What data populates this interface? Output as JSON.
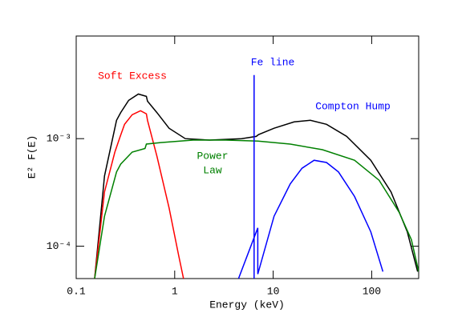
{
  "chart_data": {
    "type": "line",
    "xlabel": "Energy (keV)",
    "ylabel": "E² F(E)",
    "xscale": "log",
    "yscale": "log",
    "xlim": [
      0.1,
      300
    ],
    "ylim": [
      5e-05,
      0.009
    ],
    "xticks": [
      0.1,
      1,
      10,
      100
    ],
    "yticks": [
      {
        "value": 0.0001,
        "label": "10⁻⁴"
      },
      {
        "value": 0.001,
        "label": "10⁻³"
      }
    ],
    "series": [
      {
        "color": "#000000",
        "x": [
          0.154,
          0.194,
          0.257,
          0.283,
          0.341,
          0.428,
          0.516,
          0.53,
          0.66,
          0.877,
          1.28,
          2.25,
          4.79,
          6.73,
          7.1,
          10.2,
          16.3,
          23.8,
          34.8,
          55.7,
          98,
          157,
          230,
          293
        ],
        "values": [
          5e-05,
          0.00045,
          0.00148,
          0.00175,
          0.00227,
          0.0026,
          0.00247,
          0.00223,
          0.00175,
          0.00125,
          0.001,
          0.00097,
          0.001,
          0.00105,
          0.00109,
          0.00125,
          0.00143,
          0.00148,
          0.00136,
          0.00105,
          0.00063,
          0.00032,
          0.000136,
          5.8e-05
        ]
      },
      {
        "color": "#ff0000",
        "x": [
          0.154,
          0.194,
          0.247,
          0.28,
          0.31,
          0.37,
          0.45,
          0.516,
          0.53,
          0.66,
          0.877,
          1.1,
          1.23
        ],
        "values": [
          5e-05,
          0.00032,
          0.00075,
          0.00105,
          0.00136,
          0.00167,
          0.00182,
          0.0017,
          0.00148,
          0.00069,
          0.000227,
          8.1e-05,
          5e-05
        ]
      },
      {
        "color": "#008000",
        "x": [
          0.154,
          0.194,
          0.257,
          0.283,
          0.37,
          0.5,
          0.516,
          0.72,
          1.54,
          3.3,
          7.0,
          14.9,
          31.6,
          67,
          119,
          190,
          253,
          300
        ],
        "values": [
          5e-05,
          0.00019,
          0.00049,
          0.00058,
          0.00075,
          0.00081,
          0.00089,
          0.00092,
          0.00097,
          0.00097,
          0.00095,
          0.00089,
          0.00079,
          0.00063,
          0.00041,
          0.000207,
          0.000115,
          5.8e-05
        ]
      },
      {
        "color": "#0000ff",
        "x": [
          4.45,
          6.98,
          6.98,
          10.2,
          14.9,
          19.6,
          26,
          34.8,
          46,
          67,
          98,
          130
        ],
        "values": [
          5e-05,
          0.000148,
          5.5e-05,
          0.00019,
          0.00038,
          0.00053,
          0.00063,
          0.0006,
          0.00049,
          0.00029,
          0.000136,
          5.8e-05
        ]
      },
      {
        "color": "#0000ff",
        "x": [
          6.4,
          6.4
        ],
        "values": [
          5e-05,
          0.0039
        ]
      }
    ],
    "annotations": [
      {
        "text": "Soft Excess",
        "color": "#ff0000"
      },
      {
        "text": "Fe line",
        "color": "#0000ff"
      },
      {
        "text": "Compton Hump",
        "color": "#0000ff"
      },
      {
        "text": "Power",
        "color": "#008000"
      },
      {
        "text": "Law",
        "color": "#008000"
      }
    ]
  }
}
